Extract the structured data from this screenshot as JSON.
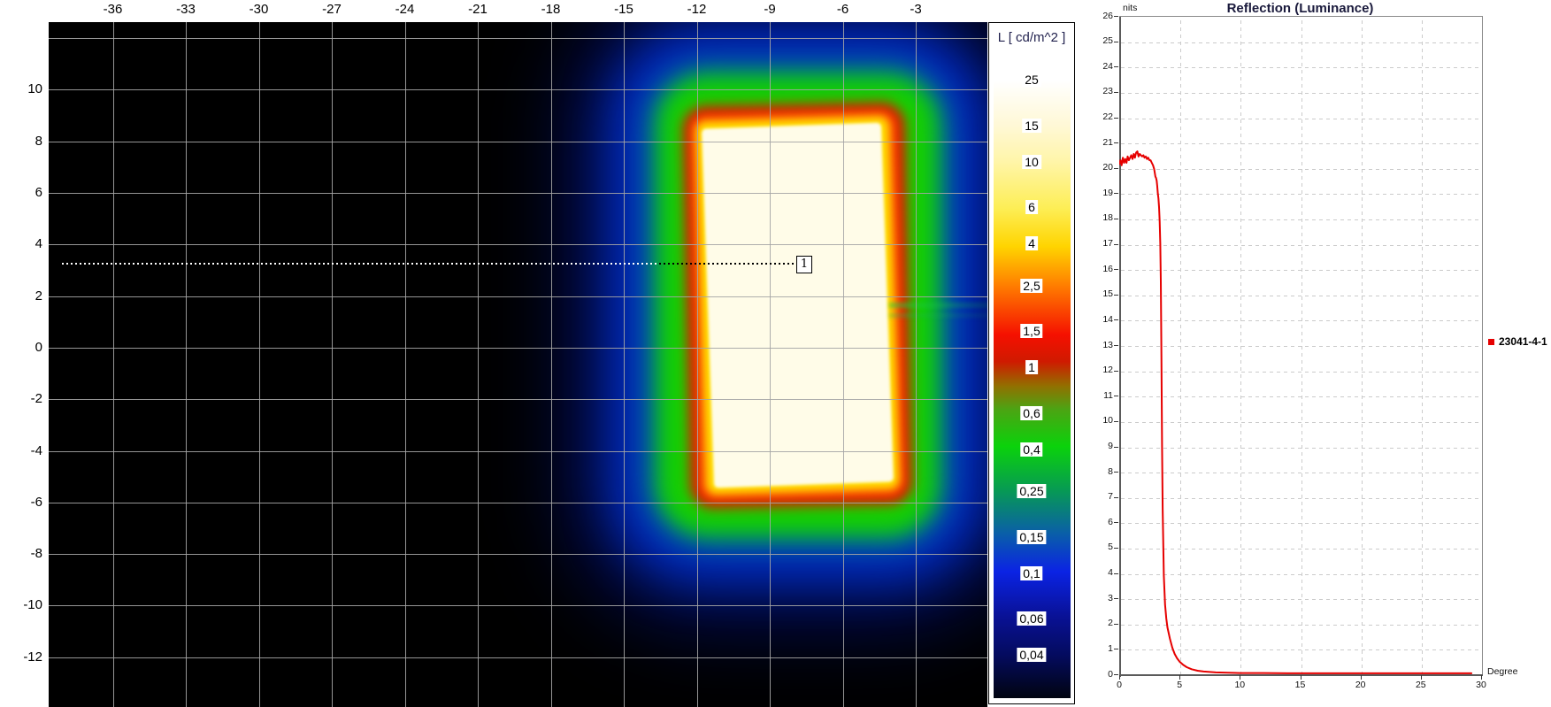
{
  "beam_map": {
    "x_tick_values": [
      -36,
      -33,
      -30,
      -27,
      -24,
      -21,
      -18,
      -15,
      -12,
      -9,
      -6,
      -3
    ],
    "y_tick_values": [
      10,
      8,
      6,
      4,
      2,
      0,
      -2,
      -4,
      -6,
      -8,
      -10,
      -12
    ],
    "y_grid_values": [
      12,
      10,
      8,
      6,
      4,
      2,
      0,
      -2,
      -4,
      -6,
      -8,
      -10,
      -12
    ],
    "cursor": {
      "marker_label": "1",
      "line_y": 3.2
    },
    "colorbar": {
      "title": "L [ cd/m^2 ]",
      "entries": [
        {
          "label": "25",
          "value": 25
        },
        {
          "label": "15",
          "value": 15
        },
        {
          "label": "10",
          "value": 10
        },
        {
          "label": "6",
          "value": 6
        },
        {
          "label": "4",
          "value": 4
        },
        {
          "label": "2,5",
          "value": 2.5
        },
        {
          "label": "1,5",
          "value": 1.5
        },
        {
          "label": "1",
          "value": 1
        },
        {
          "label": "0,6",
          "value": 0.6
        },
        {
          "label": "0,4",
          "value": 0.4
        },
        {
          "label": "0,25",
          "value": 0.25
        },
        {
          "label": "0,15",
          "value": 0.15
        },
        {
          "label": "0,1",
          "value": 0.1
        },
        {
          "label": "0,06",
          "value": 0.06
        },
        {
          "label": "0,04",
          "value": 0.04
        }
      ]
    }
  },
  "profile_chart": {
    "title": "Reflection (Luminance)",
    "y_axis_unit": "nits",
    "x_axis_unit": "Degree",
    "x_tick_values": [
      0,
      5,
      10,
      15,
      20,
      25,
      30
    ],
    "legend": {
      "label": "23041-4-1",
      "color": "#e60000"
    }
  },
  "chart_data": [
    {
      "type": "heatmap",
      "title": "",
      "x_axis": {
        "ticks": [
          -36,
          -33,
          -30,
          -27,
          -24,
          -21,
          -18,
          -15,
          -12,
          -9,
          -6,
          -3
        ],
        "range": [
          -38.6,
          -0.2
        ]
      },
      "y_axis": {
        "ticks": [
          10,
          8,
          6,
          4,
          2,
          0,
          -2,
          -4,
          -6,
          -8,
          -10,
          -12
        ],
        "range": [
          -13.9,
          12.6
        ]
      },
      "colorbar": {
        "title": "L [ cd/m^2 ]",
        "unit": "cd/m^2",
        "scale_type": "log",
        "scale_values": [
          25,
          15,
          10,
          6,
          4,
          2.5,
          1.5,
          1,
          0.6,
          0.4,
          0.25,
          0.15,
          0.1,
          0.06,
          0.04
        ]
      },
      "bright_region": {
        "description": "rectangular high-luminance source with rainbow falloff rings",
        "x_extent": [
          -11.5,
          -4.2
        ],
        "y_extent": [
          -5.3,
          8.4
        ],
        "core_level_cd_m2": 25
      },
      "cursor_line": {
        "y": 3.2,
        "marker_label": "1"
      }
    },
    {
      "type": "line",
      "title": "Reflection (Luminance)",
      "xlabel": "Degree",
      "ylabel": "nits",
      "xlim": [
        0,
        30
      ],
      "ylim": [
        0,
        26
      ],
      "x_tick_step": 5,
      "y_tick_step": 1,
      "grid": "dashed",
      "legend_position": "right-outside",
      "series": [
        {
          "name": "23041-4-1",
          "color": "#e60000",
          "points": [
            [
              0,
              20.15
            ],
            [
              0.1,
              20.3
            ],
            [
              0.2,
              20.1
            ],
            [
              0.3,
              20.4
            ],
            [
              0.4,
              20.2
            ],
            [
              0.5,
              20.35
            ],
            [
              0.6,
              20.2
            ],
            [
              0.7,
              20.45
            ],
            [
              0.8,
              20.3
            ],
            [
              0.9,
              20.4
            ],
            [
              1.0,
              20.5
            ],
            [
              1.1,
              20.35
            ],
            [
              1.2,
              20.55
            ],
            [
              1.3,
              20.4
            ],
            [
              1.4,
              20.6
            ],
            [
              1.5,
              20.65
            ],
            [
              1.6,
              20.45
            ],
            [
              1.7,
              20.55
            ],
            [
              1.8,
              20.5
            ],
            [
              1.9,
              20.45
            ],
            [
              2.0,
              20.5
            ],
            [
              2.1,
              20.4
            ],
            [
              2.2,
              20.45
            ],
            [
              2.3,
              20.35
            ],
            [
              2.4,
              20.4
            ],
            [
              2.5,
              20.3
            ],
            [
              2.6,
              20.3
            ],
            [
              2.7,
              20.2
            ],
            [
              2.8,
              20.1
            ],
            [
              2.9,
              19.95
            ],
            [
              3.0,
              19.65
            ],
            [
              3.05,
              19.6
            ],
            [
              3.1,
              19.5
            ],
            [
              3.15,
              19.3
            ],
            [
              3.2,
              19.0
            ],
            [
              3.25,
              18.8
            ],
            [
              3.3,
              18.45
            ],
            [
              3.35,
              17.9
            ],
            [
              3.4,
              17.0
            ],
            [
              3.45,
              15.5
            ],
            [
              3.5,
              12.5
            ],
            [
              3.55,
              9.0
            ],
            [
              3.6,
              6.5
            ],
            [
              3.7,
              3.9
            ],
            [
              3.8,
              2.75
            ],
            [
              3.9,
              2.2
            ],
            [
              4.0,
              1.85
            ],
            [
              4.2,
              1.4
            ],
            [
              4.4,
              1.05
            ],
            [
              4.6,
              0.8
            ],
            [
              4.8,
              0.63
            ],
            [
              5.0,
              0.5
            ],
            [
              5.3,
              0.37
            ],
            [
              5.6,
              0.28
            ],
            [
              6.0,
              0.2
            ],
            [
              6.5,
              0.14
            ],
            [
              7.0,
              0.11
            ],
            [
              7.5,
              0.09
            ],
            [
              8.0,
              0.075
            ],
            [
              9.0,
              0.06
            ],
            [
              10,
              0.05
            ],
            [
              12,
              0.05
            ],
            [
              14,
              0.04
            ],
            [
              16,
              0.04
            ],
            [
              18,
              0.04
            ],
            [
              20,
              0.04
            ],
            [
              22,
              0.04
            ],
            [
              24,
              0.04
            ],
            [
              26,
              0.04
            ],
            [
              28,
              0.04
            ],
            [
              29.2,
              0.04
            ]
          ]
        }
      ]
    }
  ]
}
